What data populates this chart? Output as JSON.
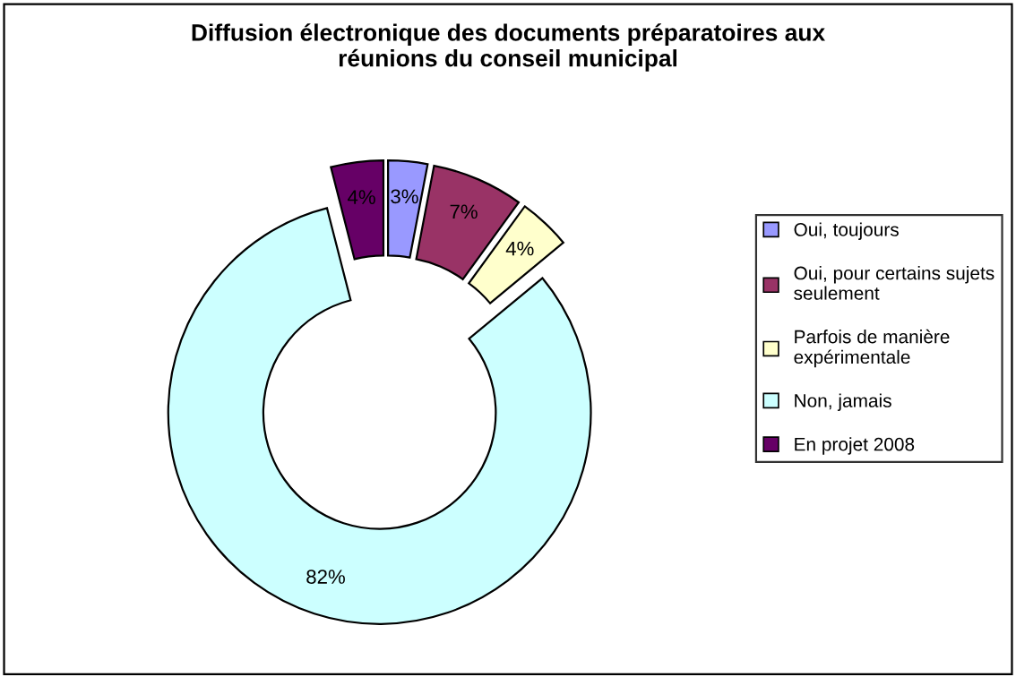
{
  "chart_data": {
    "type": "donut",
    "title": "Diffusion électronique des documents préparatoires aux\nréunions du conseil municipal",
    "categories": [
      "Oui, toujours",
      "Oui, pour certains sujets\nseulement",
      "Parfois de manière\nexpérimentale",
      "Non, jamais",
      "En projet 2008"
    ],
    "values": [
      3,
      7,
      4,
      82,
      4
    ],
    "colors": [
      "#9999ff",
      "#993366",
      "#ffffcc",
      "#ccffff",
      "#660066"
    ],
    "value_labels": [
      "3%",
      "7%",
      "4%",
      "82%",
      "4%"
    ],
    "legend": "right"
  }
}
